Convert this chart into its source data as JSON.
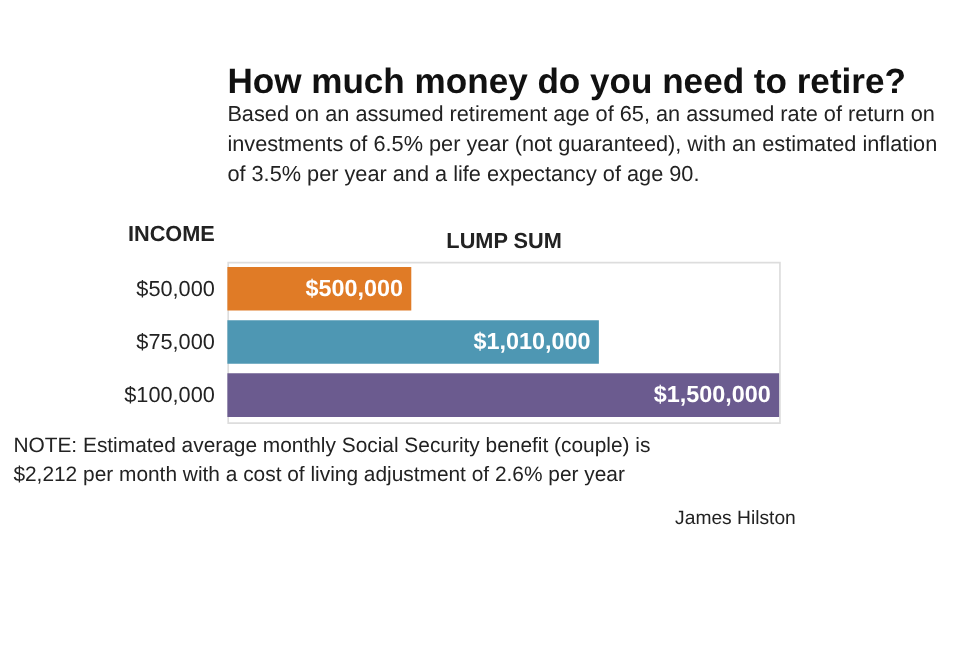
{
  "chart_data": {
    "type": "bar",
    "orientation": "horizontal",
    "title": "How much money do you need to retire?",
    "subtitle": "Based on an assumed retirement age of 65, an assumed rate of return on investments of 6.5% per year (not guaranteed), with an estimated inflation of 3.5% per year and a life expectancy of age 90.",
    "ylabel": "INCOME",
    "xlabel": "LUMP SUM",
    "categories": [
      "$50,000",
      "$75,000",
      "$100,000"
    ],
    "values": [
      500000,
      1010000,
      1500000
    ],
    "colors": [
      "#e07b26",
      "#4e97b3",
      "#6b5b8f"
    ],
    "value_labels": [
      "$500,000",
      "$1,010,000",
      "$1,500,000"
    ],
    "annotations": [
      "NOTE: Estimated average monthly Social Security benefit (couple) is $2,212 per month with a cost of living adjustment of 2.6% per year",
      "James Hilston"
    ]
  }
}
